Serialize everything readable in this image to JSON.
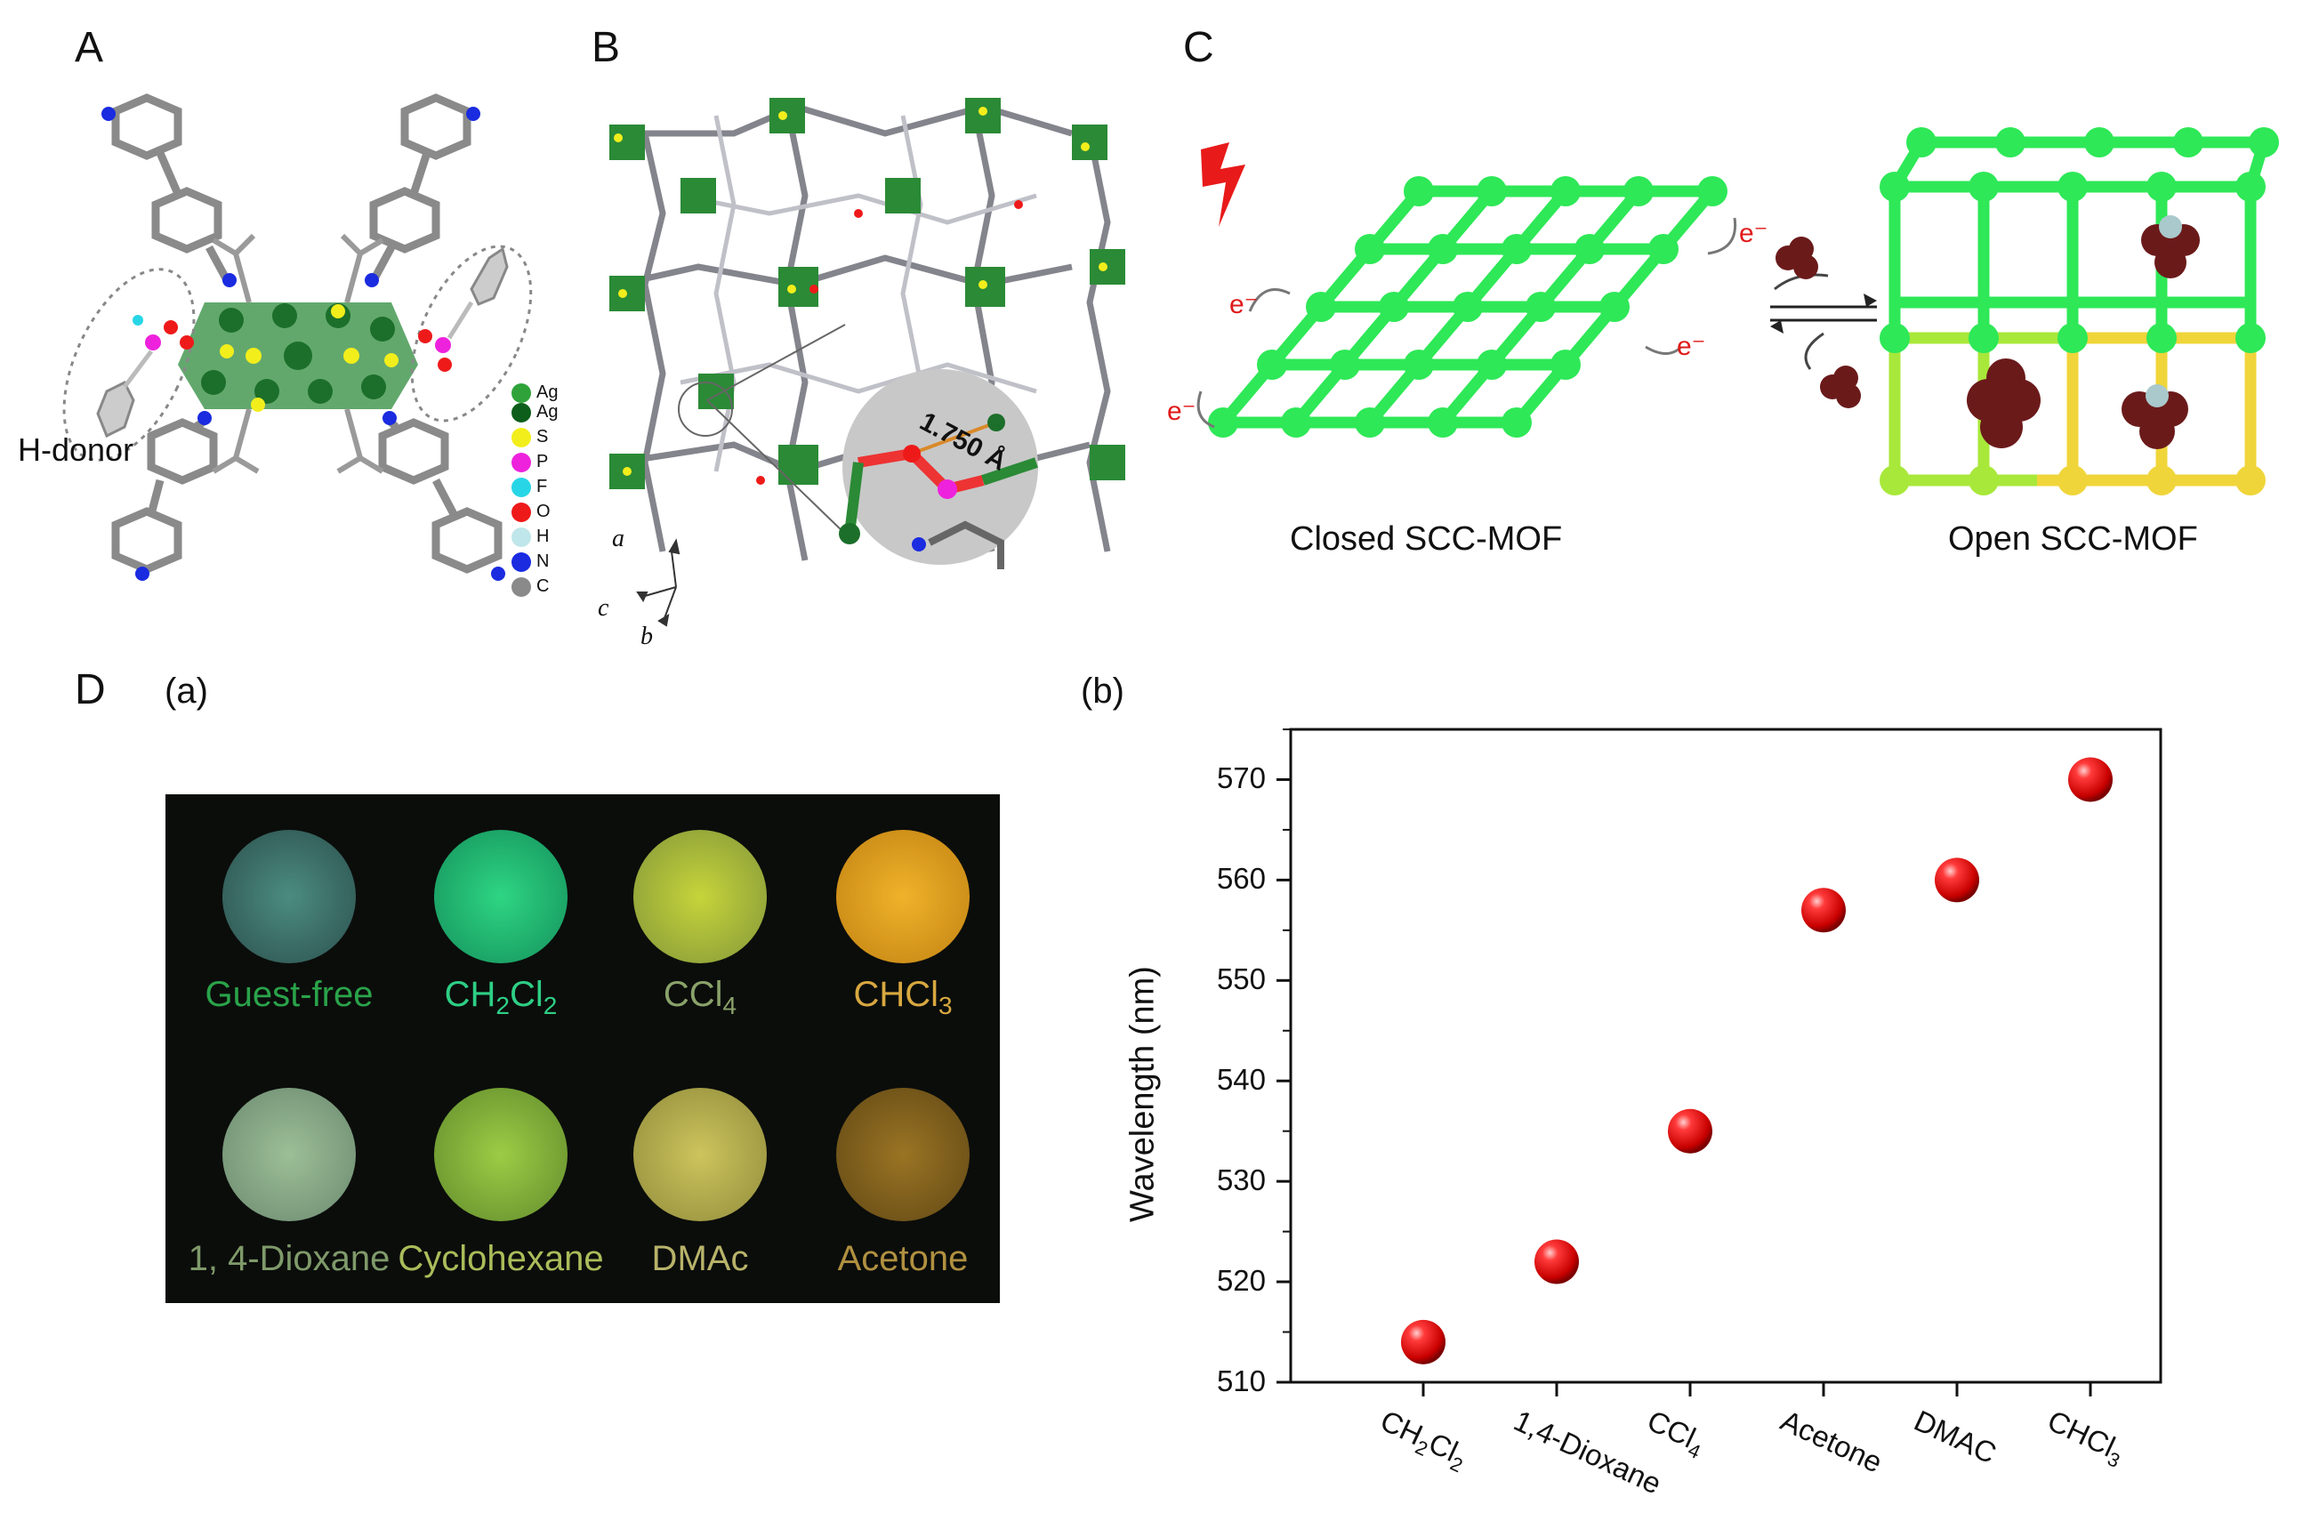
{
  "panels": {
    "A": {
      "letter": "A",
      "h_donor_label": "H-donor",
      "legend": [
        {
          "label": "Ag",
          "color": "#2fa33a"
        },
        {
          "label": "Ag",
          "color": "#0d5e1a"
        },
        {
          "label": "S",
          "color": "#f2ee1c"
        },
        {
          "label": "P",
          "color": "#ee22dd"
        },
        {
          "label": "F",
          "color": "#27d6e6"
        },
        {
          "label": "O",
          "color": "#ee1a1a"
        },
        {
          "label": "H",
          "color": "#bfe6ea"
        },
        {
          "label": "N",
          "color": "#1a2be0"
        },
        {
          "label": "C",
          "color": "#8a8a8a"
        }
      ]
    },
    "B": {
      "letter": "B",
      "distance_label": "1.750 Å",
      "axes": {
        "a": "a",
        "b": "b",
        "c": "c"
      }
    },
    "C": {
      "letter": "C",
      "closed_label": "Closed SCC-MOF",
      "open_label": "Open SCC-MOF",
      "electron_label": "e⁻"
    },
    "D": {
      "letter": "D",
      "sub_a": "(a)",
      "sub_b": "(b)",
      "vials": [
        {
          "label": "Guest-free",
          "color": "#2aa34a",
          "fill": "#3f7a6e"
        },
        {
          "label": "CH2Cl2",
          "color": "#2ecf85",
          "fill": "#1fb872"
        },
        {
          "label": "CCl4",
          "color": "#8aa26a",
          "fill": "#b0c03a"
        },
        {
          "label": "CHCl3",
          "color": "#d8a840",
          "fill": "#e0a521"
        },
        {
          "label": "1, 4-Dioxane",
          "color": "#7f9a6a",
          "fill": "#8fb28a"
        },
        {
          "label": "Cyclohexane",
          "color": "#a9bd5a",
          "fill": "#8cbd3a"
        },
        {
          "label": "DMAc",
          "color": "#b8b36a",
          "fill": "#bfbb55"
        },
        {
          "label": "Acetone",
          "color": "#b09040",
          "fill": "#9a7420"
        }
      ]
    }
  },
  "chart_data": {
    "type": "scatter",
    "title": "",
    "xlabel": "",
    "ylabel": "Wavelength (nm)",
    "categories": [
      "CH2Cl2",
      "1,4-Dioxane",
      "CCl4",
      "Acetone",
      "DMAC",
      "CHCl3"
    ],
    "values": [
      514,
      522,
      535,
      557,
      560,
      570
    ],
    "ylim": [
      510,
      575
    ],
    "yticks": [
      "510",
      "520",
      "530",
      "540",
      "550",
      "560",
      "570"
    ],
    "marker_color": "#e01010",
    "grid": false
  }
}
